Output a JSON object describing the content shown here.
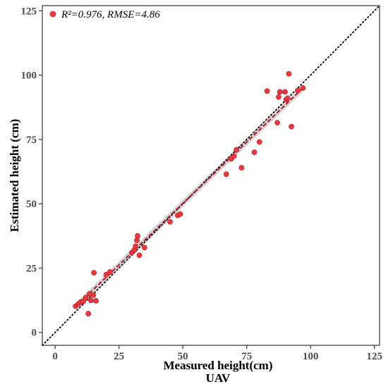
{
  "chart_data": {
    "type": "scatter",
    "xlabel": "Measured height(cm)",
    "xlabel2": "UAV",
    "ylabel": "Estimated height (cm)",
    "xlim": [
      -5,
      127
    ],
    "ylim": [
      -5,
      127
    ],
    "xticks": [
      0,
      25,
      50,
      75,
      100,
      125
    ],
    "yticks": [
      0,
      25,
      50,
      75,
      100,
      125
    ],
    "tick_labels_x": [
      "0",
      "25",
      "50",
      "75",
      "100",
      "125"
    ],
    "tick_labels_y": [
      "0",
      "25",
      "50",
      "75",
      "100",
      "125"
    ],
    "grid": false,
    "legend": {
      "placement": "top-left",
      "label": "R²=0.976, RMSE=4.86",
      "color": "#e8383d"
    },
    "reference_line": {
      "type": "1:1",
      "style": "dotted",
      "color": "#000000"
    },
    "fit_line": {
      "type": "linear",
      "style": "dashed",
      "color": "#b2182b",
      "from": [
        8,
        10
      ],
      "to": [
        97,
        95
      ],
      "confidence_band_color": "#c8c8c8"
    },
    "series": [
      {
        "marker_color": "#e8383d",
        "points": [
          [
            8,
            10.2
          ],
          [
            9,
            11
          ],
          [
            10,
            11.8
          ],
          [
            11,
            12.1
          ],
          [
            12,
            13.5
          ],
          [
            13,
            7.3
          ],
          [
            13.5,
            15
          ],
          [
            14,
            12.5
          ],
          [
            15,
            14.5
          ],
          [
            15.2,
            23.2
          ],
          [
            16,
            12.3
          ],
          [
            20,
            22.5
          ],
          [
            21.5,
            23.5
          ],
          [
            30,
            31
          ],
          [
            31,
            32
          ],
          [
            31.5,
            33.5
          ],
          [
            32,
            35.8
          ],
          [
            32.3,
            37.5
          ],
          [
            33,
            30
          ],
          [
            35,
            33
          ],
          [
            45,
            43
          ],
          [
            48,
            45.5
          ],
          [
            49,
            46
          ],
          [
            67,
            61.5
          ],
          [
            69,
            67.5
          ],
          [
            70,
            68.5
          ],
          [
            71,
            71
          ],
          [
            73,
            64
          ],
          [
            78,
            70
          ],
          [
            80,
            74
          ],
          [
            83,
            93.8
          ],
          [
            87,
            81.5
          ],
          [
            87.5,
            91.5
          ],
          [
            88,
            93.5
          ],
          [
            90,
            93.5
          ],
          [
            90.5,
            90.5
          ],
          [
            91,
            91
          ],
          [
            91.5,
            100.5
          ],
          [
            92.5,
            80
          ],
          [
            95,
            94
          ],
          [
            97,
            95
          ]
        ]
      }
    ]
  }
}
